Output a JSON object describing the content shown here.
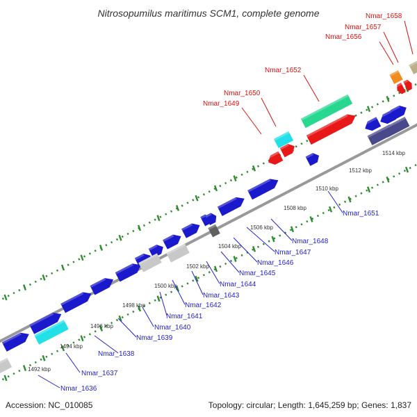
{
  "title": "Nitrosopumilus maritimus SCM1, complete genome",
  "footer": {
    "accession": "Accession: NC_010085",
    "summary": "Topology: circular; Length: 1,645,259 bp; Genes: 1,837"
  },
  "colors": {
    "background": "#ffffff",
    "backbone": "#999999",
    "dotted_track": "#2e8b2e",
    "gene_blue": "#1a1acc",
    "gene_lightgrey": "#c8c8c8",
    "gene_cyan": "#22e0e8",
    "gene_red": "#e81818",
    "gene_green": "#28d890",
    "gene_slate": "#48488a",
    "gene_orange": "#f08c1e",
    "gene_darkgrey": "#606060",
    "gene_khaki": "#bcb08a",
    "label_red": "#dd1111",
    "label_blue": "#2222cc",
    "text": "#333333"
  },
  "ticks": [
    "1492 kbp",
    "1494 kbp",
    "1496 kbp",
    "1498 kbp",
    "1500 kbp",
    "1502 kbp",
    "1504 kbp",
    "1506 kbp",
    "1508 kbp",
    "1510 kbp",
    "1512 kbp",
    "1514 kbp"
  ],
  "labels_top": [
    "Nmar_1649",
    "Nmar_1650",
    "Nmar_1652",
    "Nmar_1656",
    "Nmar_1657",
    "Nmar_1658"
  ],
  "labels_bottom": [
    "Nmar_1636",
    "Nmar_1637",
    "Nmar_1638",
    "Nmar_1639",
    "Nmar_1640",
    "Nmar_1641",
    "Nmar_1642",
    "Nmar_1643",
    "Nmar_1644",
    "Nmar_1645",
    "Nmar_1646",
    "Nmar_1647",
    "Nmar_1648",
    "Nmar_1651"
  ]
}
